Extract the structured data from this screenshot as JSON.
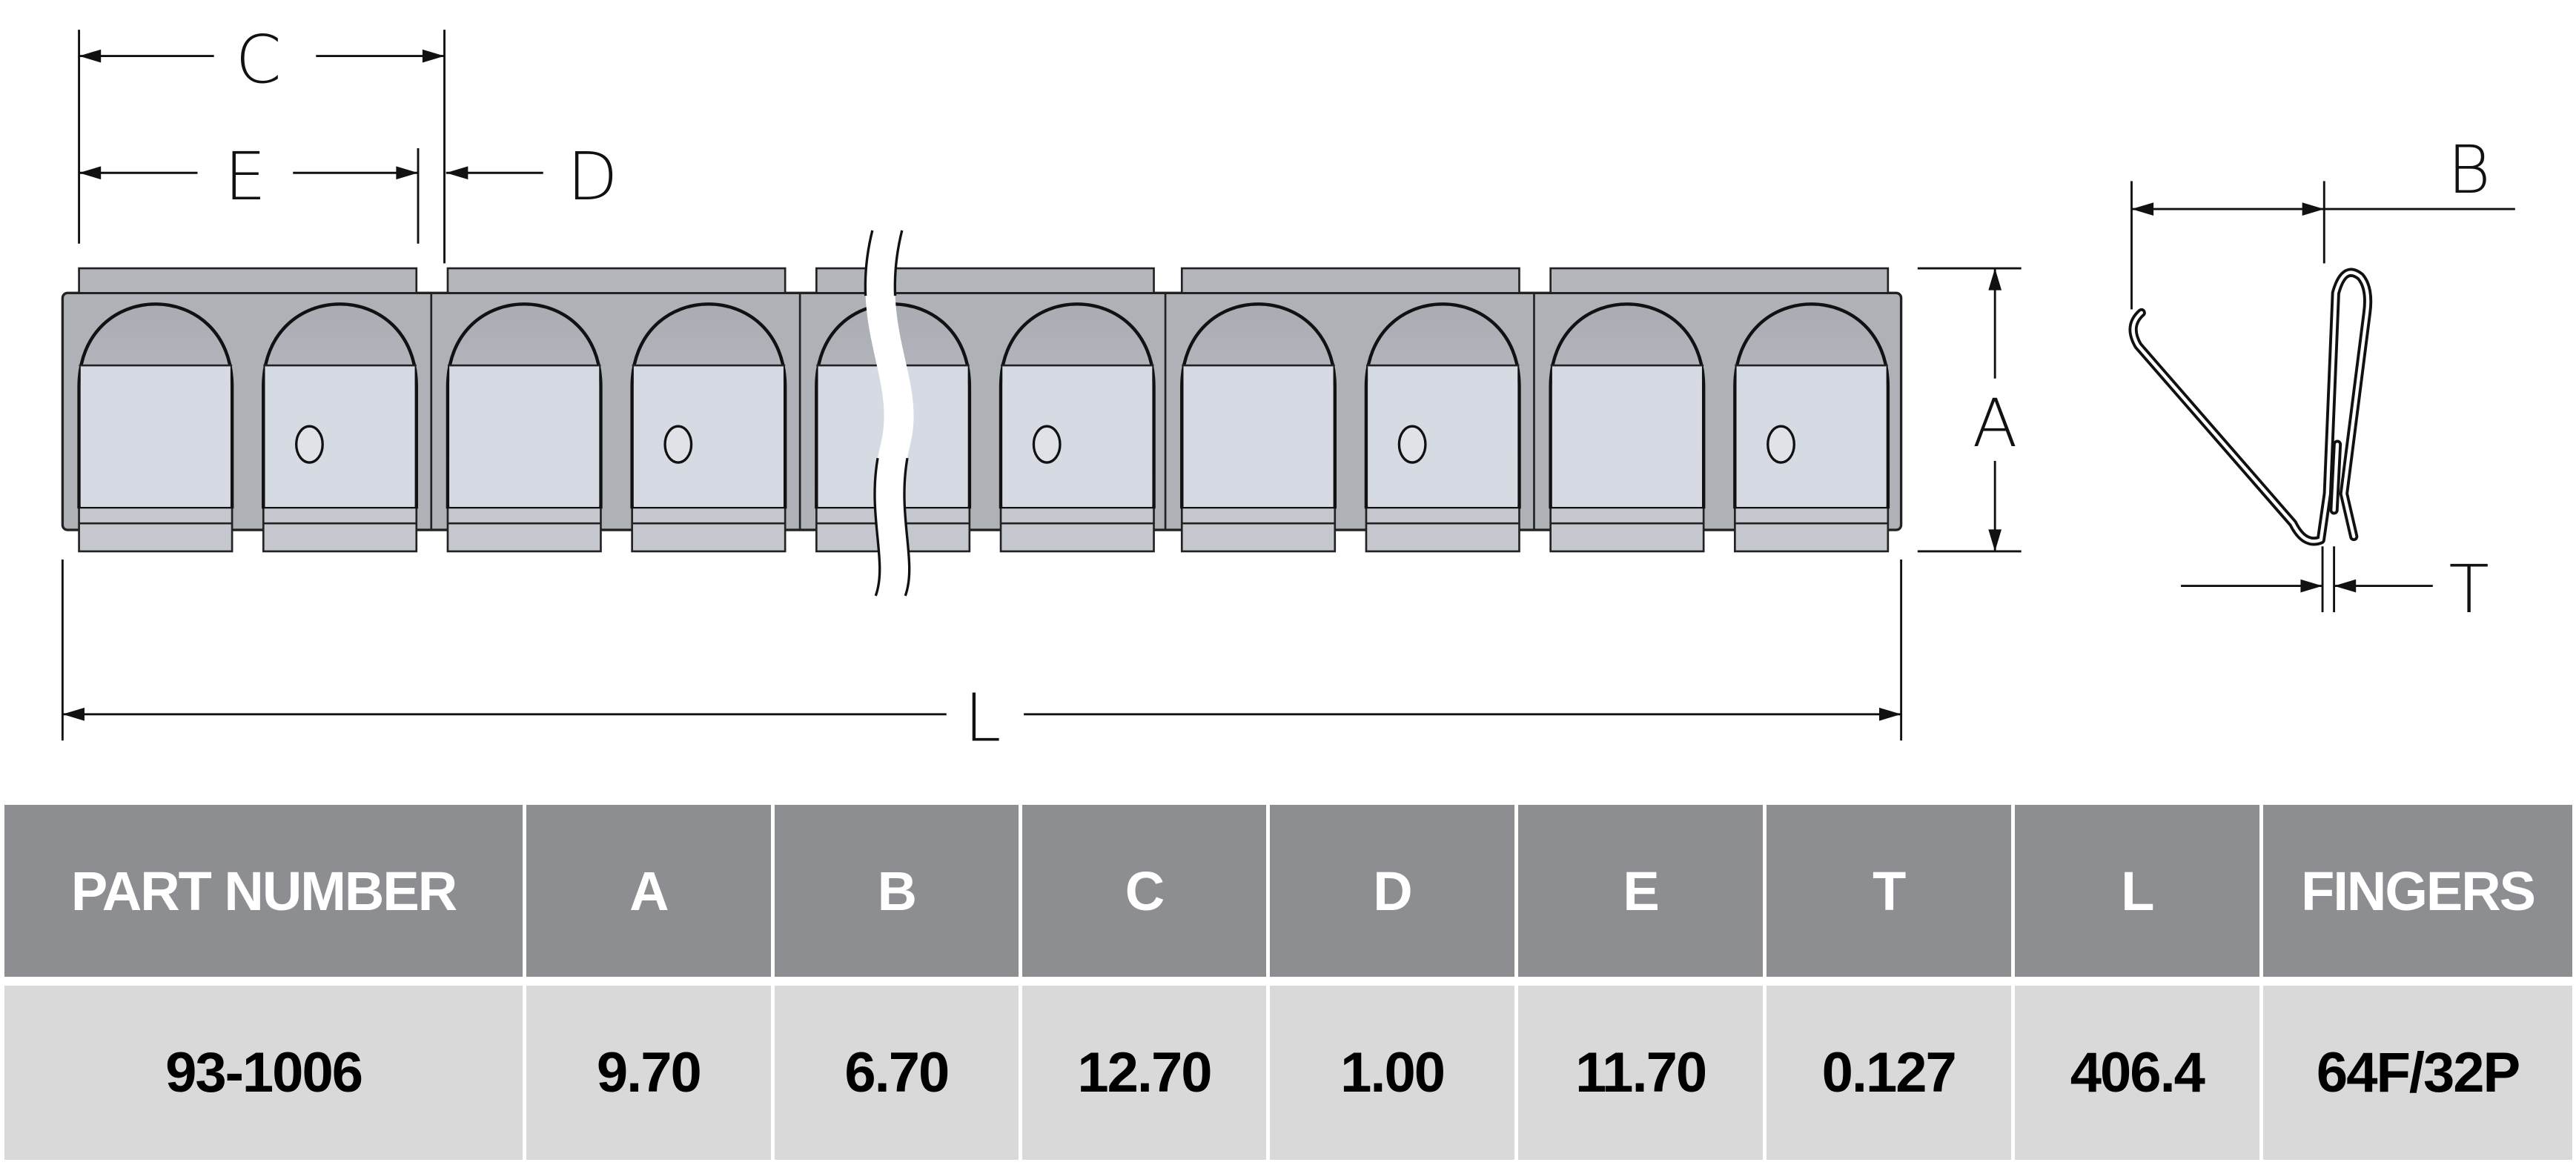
{
  "dimension_labels": {
    "C": "C",
    "E": "E",
    "D": "D",
    "L": "L",
    "A": "A",
    "B": "B",
    "T": "T"
  },
  "table": {
    "headers": [
      "PART NUMBER",
      "A",
      "B",
      "C",
      "D",
      "E",
      "T",
      "L",
      "FINGERS"
    ],
    "rows": [
      [
        "93-1006",
        "9.70",
        "6.70",
        "12.70",
        "1.00",
        "11.70",
        "0.127",
        "406.4",
        "64F/32P"
      ]
    ]
  },
  "colors": {
    "header_bg": "#8d8e92",
    "row_bg": "#d9d9d9",
    "strip_body": "#aeb1b6",
    "strip_face": "#d6dae2"
  }
}
